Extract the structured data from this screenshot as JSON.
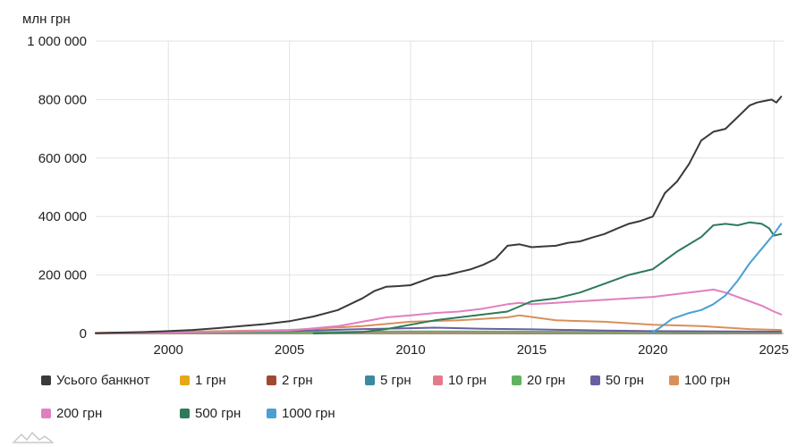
{
  "chart_data": {
    "type": "line",
    "unit_label": "млн грн",
    "xlim": [
      1997,
      2025.4
    ],
    "ylim": [
      0,
      1000000
    ],
    "x_ticks": [
      2000,
      2005,
      2010,
      2015,
      2020,
      2025
    ],
    "y_ticks": [
      0,
      200000,
      400000,
      600000,
      800000,
      1000000
    ],
    "y_tick_labels": [
      "0",
      "200 000",
      "400 000",
      "600 000",
      "800 000",
      "1 000 000"
    ],
    "grid": true,
    "legend_position": "bottom",
    "series": [
      {
        "name": "Усього банкнот",
        "color": "#3a3a3a",
        "x": [
          1997,
          1998,
          1999,
          2000,
          2001,
          2002,
          2003,
          2004,
          2005,
          2006,
          2007,
          2008,
          2008.5,
          2009,
          2009.5,
          2010,
          2010.5,
          2011,
          2011.5,
          2012,
          2012.5,
          2013,
          2013.5,
          2014,
          2014.5,
          2015,
          2015.5,
          2016,
          2016.5,
          2017,
          2017.5,
          2018,
          2018.5,
          2019,
          2019.5,
          2020,
          2020.5,
          2021,
          2021.5,
          2022,
          2022.5,
          2023,
          2023.5,
          2024,
          2024.3,
          2024.6,
          2024.9,
          2025.1,
          2025.3
        ],
        "values": [
          1000,
          3000,
          5000,
          8000,
          12000,
          18000,
          25000,
          32000,
          42000,
          58000,
          80000,
          120000,
          145000,
          160000,
          162000,
          165000,
          180000,
          195000,
          200000,
          210000,
          220000,
          235000,
          255000,
          300000,
          305000,
          295000,
          298000,
          300000,
          310000,
          315000,
          328000,
          340000,
          358000,
          375000,
          385000,
          400000,
          480000,
          520000,
          580000,
          660000,
          690000,
          700000,
          740000,
          780000,
          790000,
          795000,
          800000,
          790000,
          810000
        ]
      },
      {
        "name": "1 грн",
        "color": "#e6a817",
        "x": [
          1997,
          2005,
          2010,
          2015,
          2020,
          2025.3
        ],
        "values": [
          500,
          700,
          900,
          800,
          600,
          400
        ]
      },
      {
        "name": "2 грн",
        "color": "#a0492f",
        "x": [
          1997,
          2005,
          2010,
          2015,
          2020,
          2025.3
        ],
        "values": [
          700,
          900,
          1100,
          1000,
          800,
          600
        ]
      },
      {
        "name": "5 грн",
        "color": "#3a8aa0",
        "x": [
          1997,
          2005,
          2010,
          2015,
          2020,
          2025.3
        ],
        "values": [
          900,
          1500,
          2000,
          2000,
          1800,
          1500
        ]
      },
      {
        "name": "10 грн",
        "color": "#e57a8a",
        "x": [
          1997,
          2005,
          2010,
          2015,
          2020,
          2025.3
        ],
        "values": [
          1000,
          2500,
          3500,
          3500,
          3000,
          2500
        ]
      },
      {
        "name": "20 грн",
        "color": "#5fb35f",
        "x": [
          1997,
          2005,
          2008,
          2010,
          2015,
          2020,
          2025.3
        ],
        "values": [
          1200,
          3500,
          6000,
          7000,
          6000,
          5000,
          4000
        ]
      },
      {
        "name": "50 грн",
        "color": "#6a5fa0",
        "x": [
          1997,
          2000,
          2005,
          2008,
          2010,
          2011,
          2013,
          2015,
          2018,
          2020,
          2025.3
        ],
        "values": [
          1500,
          4000,
          8000,
          15000,
          18000,
          20000,
          16000,
          14000,
          10000,
          8000,
          6000
        ]
      },
      {
        "name": "100 грн",
        "color": "#d9905a",
        "x": [
          1997,
          2000,
          2005,
          2008,
          2010,
          2012,
          2014,
          2014.5,
          2016,
          2018,
          2020,
          2022,
          2024,
          2025.3
        ],
        "values": [
          2000,
          5000,
          12000,
          25000,
          40000,
          45000,
          55000,
          62000,
          45000,
          40000,
          30000,
          25000,
          15000,
          12000
        ]
      },
      {
        "name": "200 грн",
        "color": "#e07fc0",
        "x": [
          1997,
          2000,
          2005,
          2007,
          2008,
          2009,
          2010,
          2011,
          2012,
          2013,
          2014,
          2014.5,
          2015,
          2016,
          2017,
          2018,
          2019,
          2020,
          2021,
          2022,
          2022.5,
          2023,
          2024,
          2024.5,
          2025,
          2025.3
        ],
        "values": [
          1000,
          3000,
          10000,
          25000,
          40000,
          55000,
          62000,
          70000,
          75000,
          85000,
          100000,
          105000,
          100000,
          105000,
          110000,
          115000,
          120000,
          125000,
          135000,
          145000,
          150000,
          140000,
          110000,
          95000,
          75000,
          65000
        ]
      },
      {
        "name": "500 грн",
        "color": "#2e7a5a",
        "x": [
          2006,
          2008,
          2009,
          2010,
          2011,
          2012,
          2013,
          2014,
          2015,
          2016,
          2017,
          2018,
          2019,
          2020,
          2021,
          2022,
          2022.5,
          2023,
          2023.5,
          2024,
          2024.5,
          2024.8,
          2025,
          2025.3
        ],
        "values": [
          0,
          5000,
          15000,
          30000,
          45000,
          55000,
          65000,
          75000,
          110000,
          120000,
          140000,
          170000,
          200000,
          220000,
          280000,
          330000,
          370000,
          375000,
          370000,
          380000,
          375000,
          360000,
          335000,
          340000
        ]
      },
      {
        "name": "1000 грн",
        "color": "#4a9fd4",
        "x": [
          2019.9,
          2020.3,
          2020.8,
          2021.5,
          2022,
          2022.5,
          2023,
          2023.5,
          2024,
          2024.5,
          2025,
          2025.3
        ],
        "values": [
          0,
          20000,
          50000,
          70000,
          80000,
          100000,
          130000,
          180000,
          240000,
          290000,
          340000,
          375000
        ]
      }
    ]
  }
}
